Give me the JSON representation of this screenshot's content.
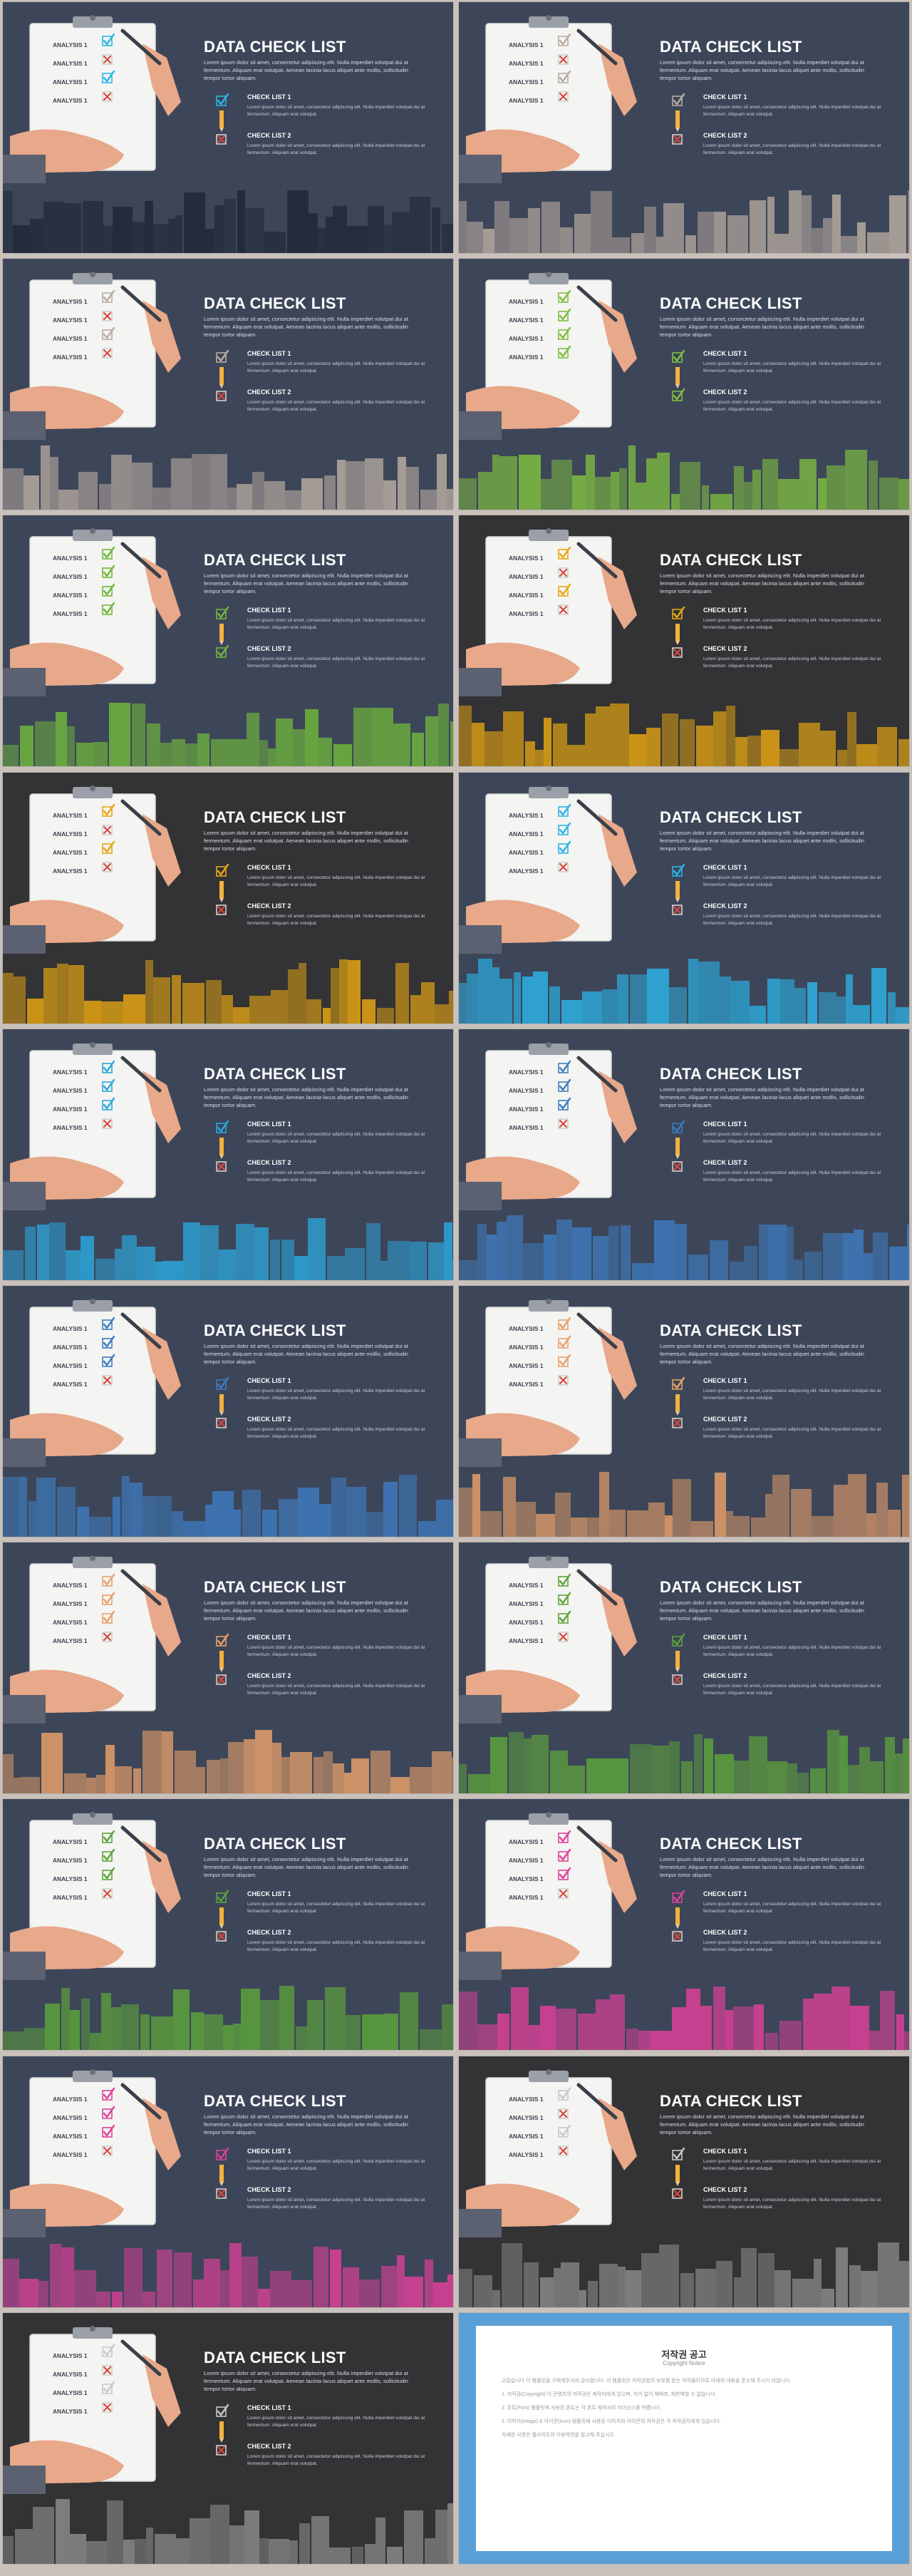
{
  "common": {
    "title": "DATA CHECK LIST",
    "lorem": "Lorem ipsum dolor sit amet, consectetur adipiscing elit. Nulla imperdiet volutpat dui at fermentum. Aliquam erat volutpat. Aenean lacinia lacus aliquet ante mollis, sollicitudin tempor tortor aliquam.",
    "check_list_1": "CHECK LIST 1",
    "check_list_2": "CHECK LIST 2",
    "check_text": "Lorem ipsum dolor sit amet, consectetur adipiscing elit. Nulla imperdiet volutpat dui at fermentum. Aliquam erat volutpat.",
    "analysis_label": "ANALYSIS 1"
  },
  "slides": [
    {
      "bg": "#3d4659",
      "city": "#1f2638",
      "accent": "#2bb3e6",
      "marks": [
        "check",
        "cross",
        "check",
        "cross"
      ],
      "legend": [
        "check",
        "cross"
      ]
    },
    {
      "bg": "#3d4659",
      "city": "#b9aca0",
      "accent": "#b9aca0",
      "marks": [
        "check",
        "cross",
        "check",
        "cross"
      ],
      "legend": [
        "check",
        "cross"
      ]
    },
    {
      "bg": "#3d4659",
      "city": "#b9aca0",
      "accent": "#b9aca0",
      "marks": [
        "check",
        "cross",
        "check",
        "cross"
      ],
      "legend": [
        "check",
        "cross"
      ]
    },
    {
      "bg": "#3d4659",
      "city": "#7fbf3f",
      "accent": "#7fbf3f",
      "marks": [
        "check",
        "check",
        "check",
        "check"
      ],
      "legend": [
        "check",
        "check"
      ]
    },
    {
      "bg": "#3d4659",
      "city": "#6fb73c",
      "accent": "#6fb73c",
      "marks": [
        "check",
        "check",
        "check",
        "check"
      ],
      "legend": [
        "check",
        "check"
      ]
    },
    {
      "bg": "#333335",
      "city": "#e8a712",
      "accent": "#e8a712",
      "marks": [
        "check",
        "cross",
        "check",
        "cross"
      ],
      "legend": [
        "check",
        "cross"
      ]
    },
    {
      "bg": "#333335",
      "city": "#e8a712",
      "accent": "#e8a712",
      "marks": [
        "check",
        "cross",
        "check",
        "cross"
      ],
      "legend": [
        "check",
        "cross"
      ]
    },
    {
      "bg": "#3d4659",
      "city": "#2bb3e6",
      "accent": "#2bb3e6",
      "marks": [
        "check",
        "check",
        "check",
        "cross"
      ],
      "legend": [
        "check",
        "cross"
      ]
    },
    {
      "bg": "#3d4659",
      "city": "#2aa7de",
      "accent": "#2aa7de",
      "marks": [
        "check",
        "check",
        "check",
        "cross"
      ],
      "legend": [
        "check",
        "cross"
      ]
    },
    {
      "bg": "#3d4659",
      "city": "#3d7cc0",
      "accent": "#3d7cc0",
      "marks": [
        "check",
        "check",
        "check",
        "cross"
      ],
      "legend": [
        "check",
        "cross"
      ]
    },
    {
      "bg": "#3d4659",
      "city": "#3d7cc0",
      "accent": "#3d7cc0",
      "marks": [
        "check",
        "check",
        "check",
        "cross"
      ],
      "legend": [
        "check",
        "cross"
      ]
    },
    {
      "bg": "#3d4659",
      "city": "#e8a06a",
      "accent": "#e8a06a",
      "marks": [
        "check",
        "check",
        "check",
        "cross"
      ],
      "legend": [
        "check",
        "cross"
      ]
    },
    {
      "bg": "#3d4659",
      "city": "#e8a06a",
      "accent": "#e8a06a",
      "marks": [
        "check",
        "check",
        "check",
        "cross"
      ],
      "legend": [
        "check",
        "cross"
      ]
    },
    {
      "bg": "#3d4659",
      "city": "#5da33a",
      "accent": "#5da33a",
      "marks": [
        "check",
        "check",
        "check",
        "cross"
      ],
      "legend": [
        "check",
        "cross"
      ]
    },
    {
      "bg": "#3d4659",
      "city": "#5da33a",
      "accent": "#5da33a",
      "marks": [
        "check",
        "check",
        "check",
        "cross"
      ],
      "legend": [
        "check",
        "cross"
      ]
    },
    {
      "bg": "#3d4659",
      "city": "#e0409a",
      "accent": "#e0409a",
      "marks": [
        "check",
        "check",
        "check",
        "cross"
      ],
      "legend": [
        "check",
        "cross"
      ]
    },
    {
      "bg": "#3d4659",
      "city": "#e0409a",
      "accent": "#e0409a",
      "marks": [
        "check",
        "check",
        "check",
        "cross"
      ],
      "legend": [
        "check",
        "cross"
      ]
    },
    {
      "bg": "#333335",
      "city": "#8a8a8a",
      "accent": "#c8c8c8",
      "marks": [
        "check",
        "cross",
        "check",
        "cross"
      ],
      "legend": [
        "check",
        "cross"
      ]
    },
    {
      "bg": "#333335",
      "city": "#8a8a8a",
      "accent": "#c8c8c8",
      "marks": [
        "check",
        "cross",
        "check",
        "cross"
      ],
      "legend": [
        "check",
        "cross"
      ]
    }
  ],
  "notice": {
    "title": "저작권 공고",
    "subtitle": "Copyright Notice",
    "p1": "고맙습니다 이 템플릿을 구매해주셔서 감사합니다. 이 템플릿은 저작권법의 보호를 받는 저작물이므로 아래의 내용을 준수해 주시기 바랍니다.",
    "p2": "1. 저작권(Copyright) 이 콘텐츠의 저작권은 제작자에게 있으며, 허가 없이 재배포, 재판매할 수 없습니다.",
    "p3": "2. 폰트(Font) 템플릿에 사용된 폰트는 각 폰트 제작사의 라이선스를 따릅니다.",
    "p4": "3. 이미지(Image) & 아이콘(Icon) 템플릿에 사용된 이미지와 아이콘의 저작권은 각 저작권자에게 있습니다.",
    "p5": "자세한 사항은 웹사이트의 이용약관을 참고해 주십시오."
  }
}
